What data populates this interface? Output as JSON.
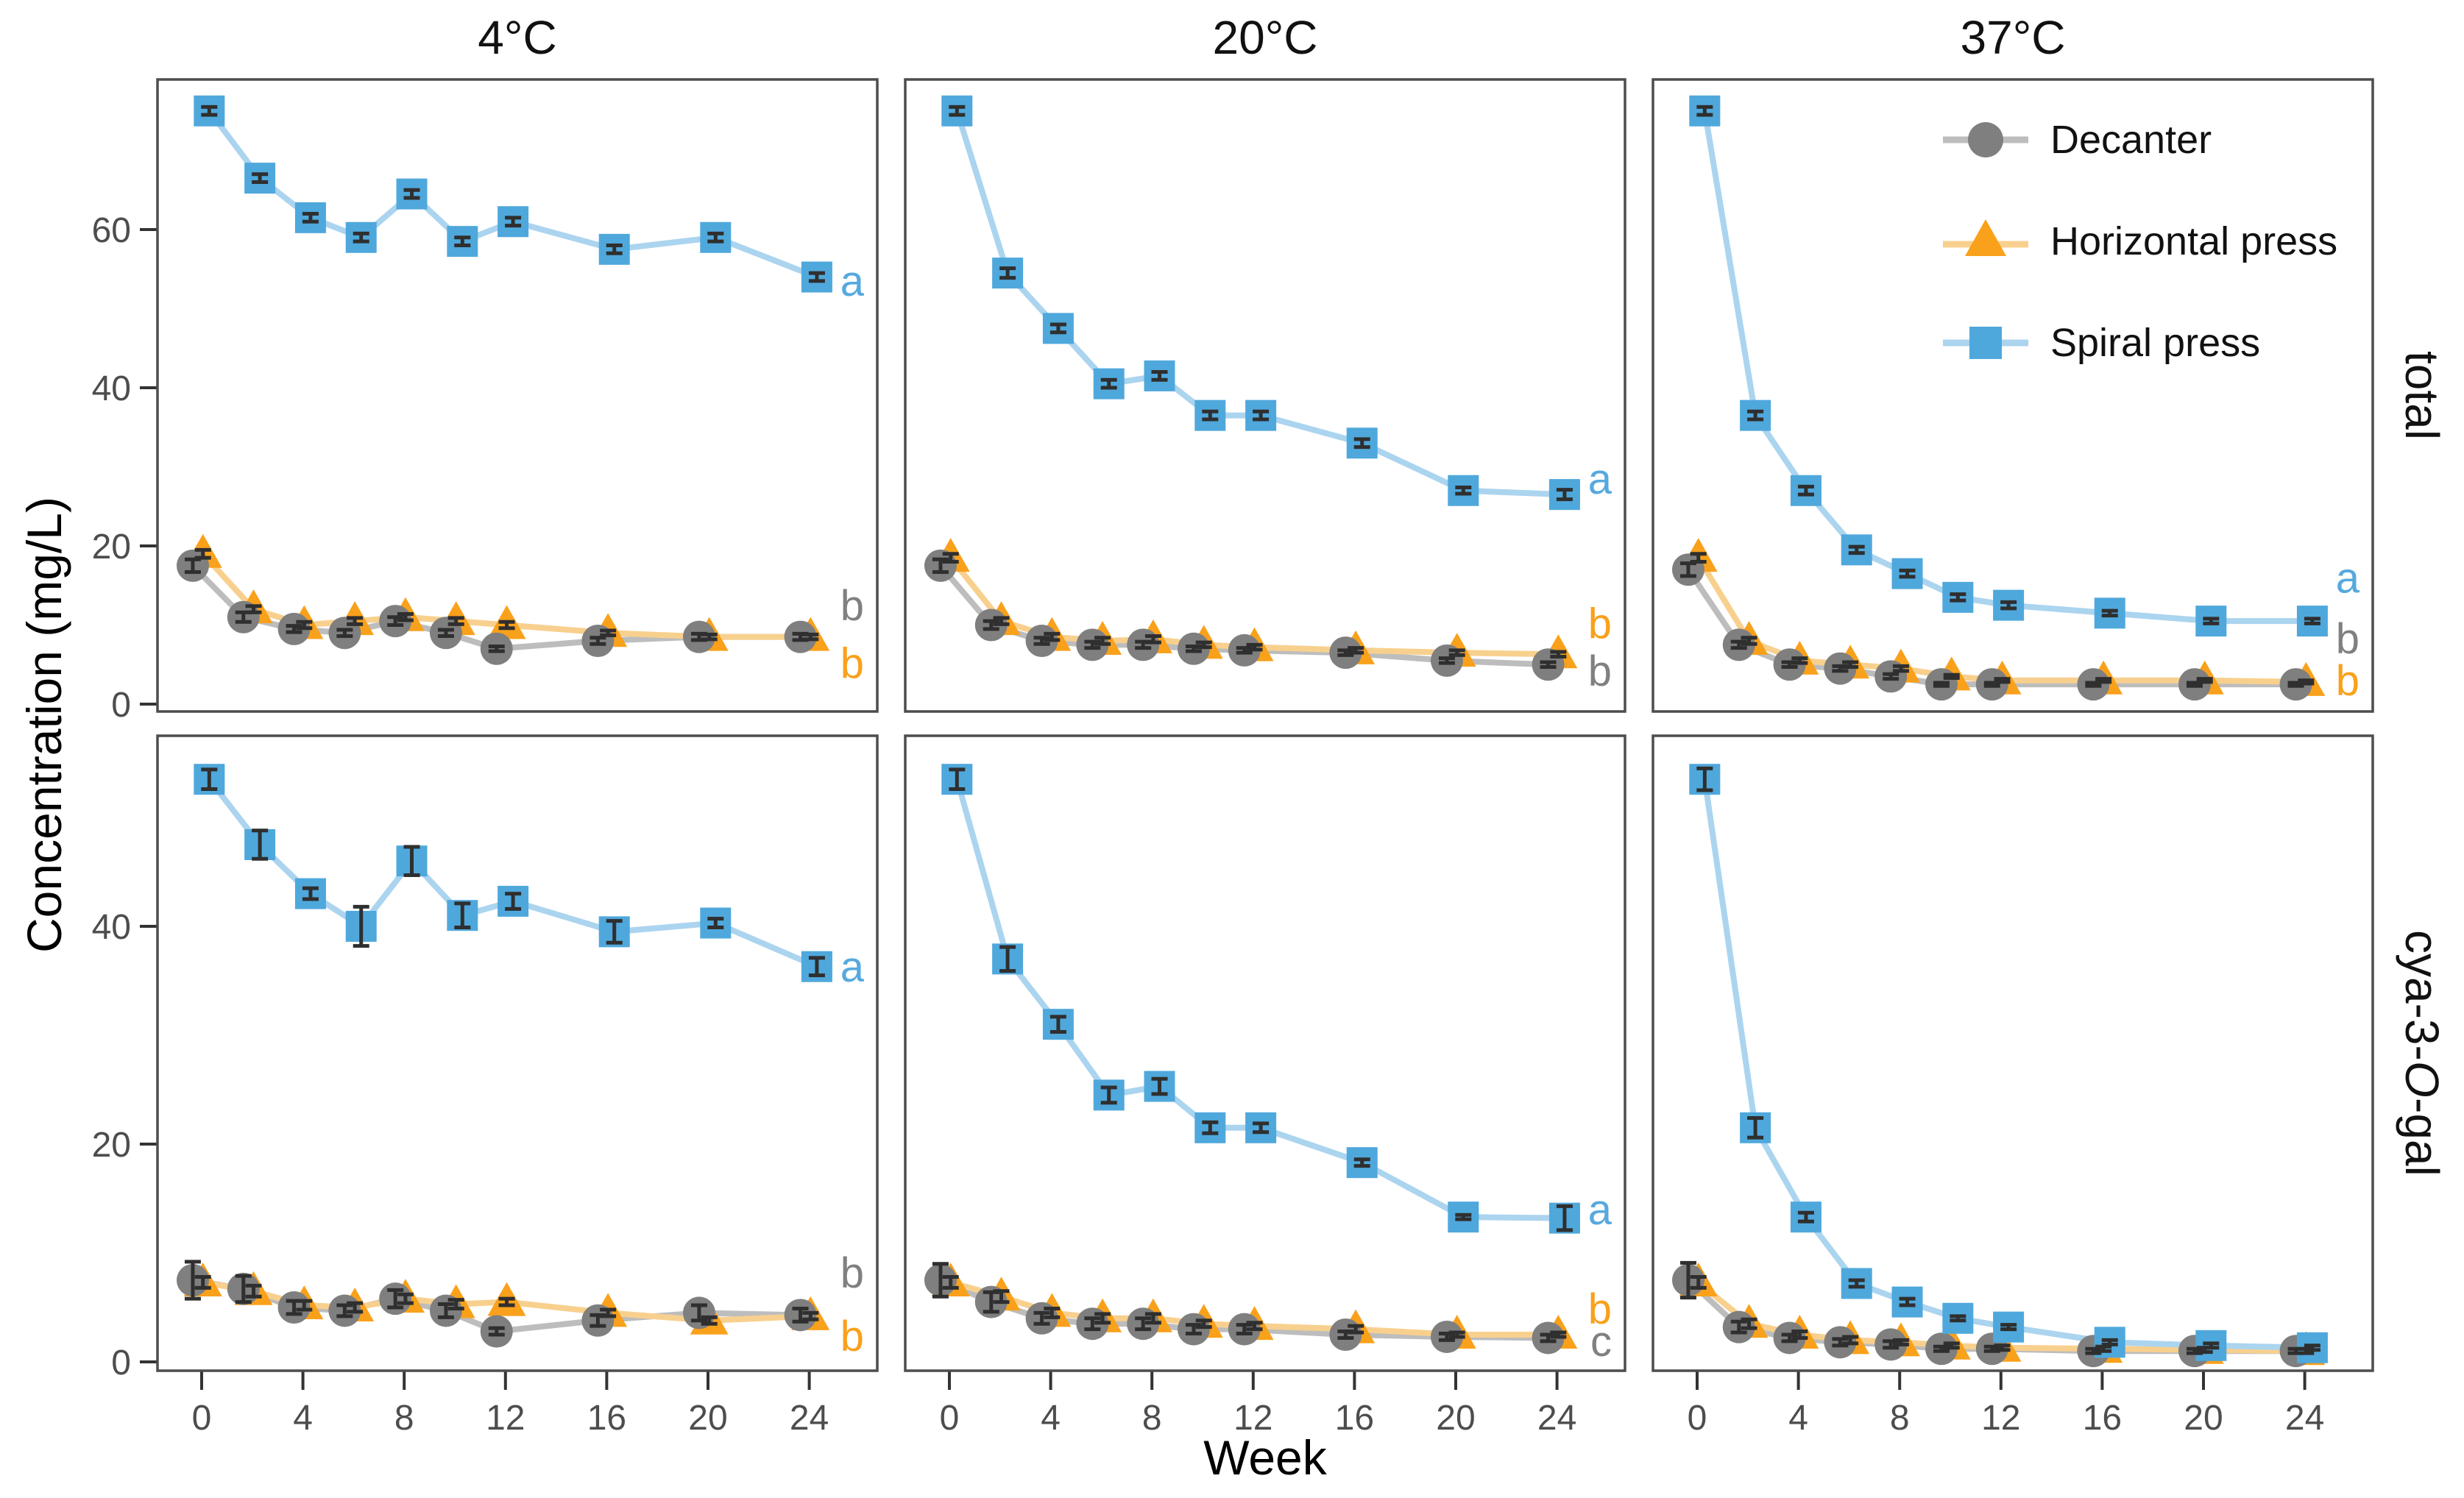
{
  "titles": {
    "y_axis": "Concentration (mg/L)",
    "x_axis": "Week"
  },
  "facet_columns": [
    "4°C",
    "20°C",
    "37°C"
  ],
  "facet_rows": {
    "total_label": "total",
    "cya_parts": [
      "cya-3-",
      "O",
      "-gal"
    ]
  },
  "legend": {
    "items": [
      {
        "label": "Decanter",
        "series": "decanter",
        "marker": "circle"
      },
      {
        "label": "Horizontal press",
        "series": "horizontal",
        "marker": "triangle"
      },
      {
        "label": "Spiral press",
        "series": "spiral",
        "marker": "square"
      }
    ]
  },
  "colors": {
    "decanter": {
      "marker": "#7F7F7F",
      "line": "#BDBDBD",
      "letter": "#808080"
    },
    "horizontal": {
      "marker": "#F9A11B",
      "line": "#F8D08E",
      "letter": "#F9A11B"
    },
    "spiral": {
      "marker": "#4FA8DC",
      "line": "#ABD4EF",
      "letter": "#56A9DE"
    },
    "error": "#2F2F2F",
    "panel_border": "#4D4D4D",
    "tick": "#333333",
    "tick_label": "#4D4D4D"
  },
  "chart_data": {
    "type": "line",
    "x_label": "Week",
    "y_label": "Concentration (mg/L)",
    "x": [
      0,
      2,
      4,
      6,
      8,
      10,
      12,
      16,
      20,
      24
    ],
    "x_ticks": [
      0,
      4,
      8,
      12,
      16,
      20,
      24
    ],
    "x_limits": [
      -1.75,
      26.7
    ],
    "series_offsets": {
      "decanter": -0.35,
      "horizontal": 0.05,
      "spiral": 0.3
    },
    "rows": [
      {
        "name": "total",
        "y_ticks": [
          0,
          20,
          40,
          60
        ],
        "y_limits": [
          -1.0,
          79.0
        ]
      },
      {
        "name": "cya-3-O-gal",
        "y_ticks": [
          0,
          20,
          40
        ],
        "y_limits": [
          -0.8,
          57.5
        ]
      }
    ],
    "panels": [
      {
        "row": "total",
        "col": "4°C",
        "series": [
          {
            "name": "decanter",
            "values": [
              17.5,
              11.0,
              9.5,
              9.0,
              10.5,
              9.0,
              7.0,
              8.0,
              8.5,
              8.5
            ],
            "se": [
              0.8,
              0.6,
              0.4,
              0.4,
              0.5,
              0.4,
              0.3,
              0.4,
              0.4,
              0.4
            ]
          },
          {
            "name": "horizontal",
            "values": [
              19.0,
              12.0,
              10.0,
              10.5,
              11.0,
              10.5,
              10.0,
              9.0,
              8.5,
              8.5
            ],
            "se": [
              0.5,
              0.4,
              0.4,
              0.4,
              0.4,
              0.4,
              0.4,
              0.3,
              0.3,
              0.3
            ]
          },
          {
            "name": "spiral",
            "values": [
              75.0,
              66.5,
              61.5,
              59.0,
              64.5,
              58.5,
              61.0,
              57.5,
              59.0,
              54.0
            ],
            "se": [
              0.5,
              0.5,
              0.5,
              0.5,
              0.5,
              0.5,
              0.5,
              0.5,
              0.5,
              0.5
            ]
          }
        ],
        "letters": [
          {
            "text": "a",
            "series": "spiral",
            "value": 53.5
          },
          {
            "text": "b",
            "series": "decanter",
            "value": 12.5
          },
          {
            "text": "b",
            "series": "horizontal",
            "value": 5.2
          }
        ]
      },
      {
        "row": "total",
        "col": "20°C",
        "series": [
          {
            "name": "decanter",
            "values": [
              17.5,
              10.0,
              8.0,
              7.5,
              7.5,
              7.0,
              6.8,
              6.5,
              5.5,
              5.0
            ],
            "se": [
              0.8,
              0.5,
              0.4,
              0.4,
              0.4,
              0.3,
              0.3,
              0.3,
              0.3,
              0.3
            ]
          },
          {
            "name": "horizontal",
            "values": [
              18.5,
              10.5,
              8.5,
              8.0,
              8.2,
              7.5,
              7.2,
              6.8,
              6.5,
              6.3
            ],
            "se": [
              0.5,
              0.4,
              0.4,
              0.4,
              0.4,
              0.3,
              0.3,
              0.3,
              0.3,
              0.3
            ]
          },
          {
            "name": "spiral",
            "values": [
              75.0,
              54.5,
              47.5,
              40.5,
              41.5,
              36.5,
              36.5,
              33.0,
              27.0,
              26.5
            ],
            "se": [
              0.5,
              0.6,
              0.5,
              0.5,
              0.5,
              0.5,
              0.5,
              0.5,
              0.4,
              0.6
            ]
          }
        ],
        "letters": [
          {
            "text": "a",
            "series": "spiral",
            "value": 28.5
          },
          {
            "text": "b",
            "series": "horizontal",
            "value": 10.2
          },
          {
            "text": "b",
            "series": "decanter",
            "value": 4.2
          }
        ]
      },
      {
        "row": "total",
        "col": "37°C",
        "series": [
          {
            "name": "decanter",
            "values": [
              17.0,
              7.5,
              5.0,
              4.5,
              3.5,
              2.5,
              2.5,
              2.5,
              2.5,
              2.5
            ],
            "se": [
              0.8,
              0.4,
              0.3,
              0.3,
              0.3,
              0.2,
              0.2,
              0.2,
              0.2,
              0.2
            ]
          },
          {
            "name": "horizontal",
            "values": [
              18.5,
              8.0,
              5.5,
              5.0,
              4.5,
              3.5,
              3.0,
              3.0,
              3.0,
              2.8
            ],
            "se": [
              0.5,
              0.4,
              0.3,
              0.3,
              0.3,
              0.2,
              0.2,
              0.2,
              0.2,
              0.2
            ]
          },
          {
            "name": "spiral",
            "values": [
              75.0,
              36.5,
              27.0,
              19.5,
              16.5,
              13.5,
              12.5,
              11.5,
              10.5,
              10.5
            ],
            "se": [
              0.5,
              0.5,
              0.5,
              0.4,
              0.4,
              0.4,
              0.4,
              0.3,
              0.3,
              0.3
            ]
          }
        ],
        "letters": [
          {
            "text": "a",
            "series": "spiral",
            "value": 16.0
          },
          {
            "text": "b",
            "series": "decanter",
            "value": 8.3
          },
          {
            "text": "b",
            "series": "horizontal",
            "value": 3.0
          }
        ]
      },
      {
        "row": "cya-3-O-gal",
        "col": "4°C",
        "series": [
          {
            "name": "decanter",
            "values": [
              7.5,
              6.7,
              5.0,
              4.7,
              5.8,
              4.7,
              2.8,
              3.8,
              4.5,
              4.3
            ],
            "se": [
              1.7,
              1.2,
              0.6,
              0.5,
              0.8,
              0.6,
              0.3,
              0.5,
              0.7,
              0.6
            ]
          },
          {
            "name": "horizontal",
            "values": [
              7.3,
              6.5,
              5.2,
              5.0,
              5.8,
              5.3,
              5.5,
              4.5,
              3.8,
              4.2
            ],
            "se": [
              0.5,
              0.5,
              0.4,
              0.4,
              0.4,
              0.4,
              0.3,
              0.3,
              0.3,
              0.3
            ]
          },
          {
            "name": "spiral",
            "values": [
              53.5,
              47.5,
              43.0,
              40.0,
              46.0,
              41.0,
              42.3,
              39.5,
              40.3,
              36.3
            ],
            "se": [
              0.9,
              1.3,
              0.5,
              1.8,
              1.3,
              1.1,
              0.7,
              1.0,
              0.4,
              0.8
            ]
          }
        ],
        "letters": [
          {
            "text": "b",
            "series": "decanter",
            "value": 8.2
          },
          {
            "text": "b",
            "series": "horizontal",
            "value": 2.4
          },
          {
            "text": "a",
            "series": "spiral",
            "value": 36.3
          }
        ]
      },
      {
        "row": "cya-3-O-gal",
        "col": "20°C",
        "series": [
          {
            "name": "decanter",
            "values": [
              7.5,
              5.5,
              4.0,
              3.5,
              3.5,
              3.0,
              3.0,
              2.5,
              2.3,
              2.2
            ],
            "se": [
              1.5,
              0.9,
              0.5,
              0.5,
              0.5,
              0.4,
              0.4,
              0.3,
              0.3,
              0.3
            ]
          },
          {
            "name": "horizontal",
            "values": [
              7.3,
              6.0,
              4.5,
              4.0,
              4.0,
              3.5,
              3.3,
              3.0,
              2.5,
              2.5
            ],
            "se": [
              0.5,
              0.5,
              0.4,
              0.4,
              0.4,
              0.3,
              0.3,
              0.3,
              0.2,
              0.2
            ]
          },
          {
            "name": "spiral",
            "values": [
              53.5,
              37.0,
              31.0,
              24.5,
              25.3,
              21.5,
              21.5,
              18.3,
              13.3,
              13.2
            ],
            "se": [
              0.9,
              1.1,
              0.7,
              0.7,
              0.7,
              0.5,
              0.4,
              0.3,
              0.2,
              1.1
            ]
          }
        ],
        "letters": [
          {
            "text": "a",
            "series": "spiral",
            "value": 14.0
          },
          {
            "text": "b",
            "series": "horizontal",
            "value": 4.9
          },
          {
            "text": "c",
            "series": "decanter",
            "value": 1.9
          }
        ]
      },
      {
        "row": "cya-3-O-gal",
        "col": "37°C",
        "series": [
          {
            "name": "decanter",
            "values": [
              7.5,
              3.2,
              2.2,
              1.8,
              1.6,
              1.2,
              1.2,
              1.0,
              1.0,
              1.0
            ],
            "se": [
              1.6,
              0.5,
              0.3,
              0.3,
              0.3,
              0.2,
              0.2,
              0.2,
              0.2,
              0.2
            ]
          },
          {
            "name": "horizontal",
            "values": [
              7.3,
              3.5,
              2.5,
              2.0,
              1.8,
              1.5,
              1.3,
              1.2,
              1.1,
              1.0
            ],
            "se": [
              0.5,
              0.4,
              0.3,
              0.3,
              0.2,
              0.2,
              0.2,
              0.2,
              0.2,
              0.2
            ]
          },
          {
            "name": "spiral",
            "values": [
              53.5,
              21.5,
              13.3,
              7.2,
              5.5,
              4.0,
              3.2,
              1.8,
              1.5,
              1.3
            ],
            "se": [
              1.0,
              0.9,
              0.4,
              0.3,
              0.3,
              0.2,
              0.2,
              0.2,
              0.2,
              0.2
            ]
          }
        ],
        "letters": []
      }
    ]
  }
}
